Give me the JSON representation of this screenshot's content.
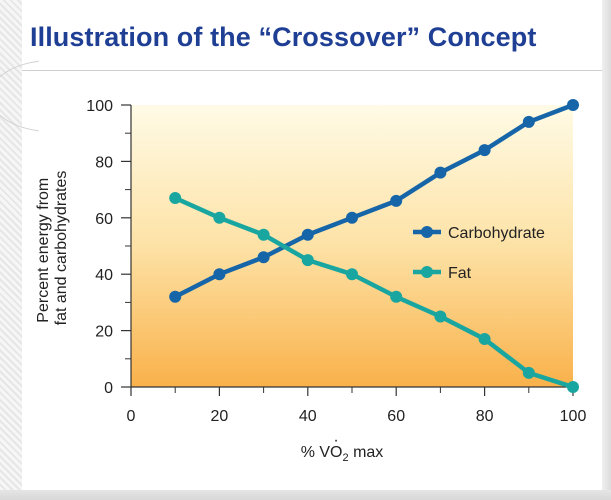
{
  "title": "Illustration of the “Crossover” Concept",
  "chart_data": {
    "type": "line",
    "x": [
      10,
      20,
      30,
      40,
      50,
      60,
      70,
      80,
      90,
      100
    ],
    "xticks": [
      0,
      20,
      40,
      60,
      80,
      100
    ],
    "yticks": [
      0,
      20,
      40,
      60,
      80,
      100
    ],
    "xlim": [
      0,
      100
    ],
    "ylim": [
      0,
      100
    ],
    "xlabel_pre": "% ",
    "xlabel_v": "V",
    "xlabel_o": "O",
    "xlabel_sub": "2",
    "xlabel_post": " max",
    "ylabel_line1": "Percent energy from",
    "ylabel_line2": "fat and carbohydrates",
    "legend_position": "center-right",
    "background": "gradient light yellow to orange",
    "series": [
      {
        "name": "Carbohydrate",
        "color": "#1565a8",
        "values": [
          32,
          40,
          46,
          54,
          60,
          66,
          76,
          84,
          94,
          100
        ]
      },
      {
        "name": "Fat",
        "color": "#1aa6a0",
        "values": [
          67,
          60,
          54,
          45,
          40,
          32,
          25,
          17,
          5,
          0
        ]
      }
    ]
  }
}
